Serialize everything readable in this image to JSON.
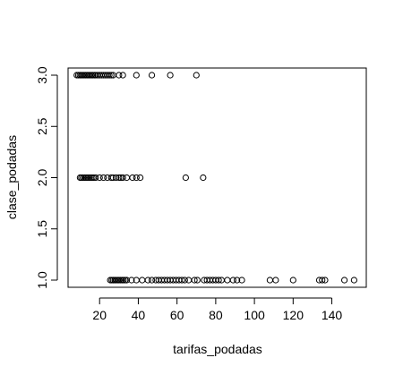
{
  "chart_data": {
    "type": "scatter",
    "xlabel": "tarifas_podadas",
    "ylabel": "clase_podadas",
    "xlim": [
      3.7,
      157.8
    ],
    "ylim": [
      0.93,
      3.07
    ],
    "x_ticks": [
      20,
      40,
      60,
      80,
      100,
      120,
      140
    ],
    "x_tick_labels": [
      "20",
      "40",
      "60",
      "80",
      "100",
      "120",
      "140"
    ],
    "y_ticks": [
      1.0,
      1.5,
      2.0,
      2.5,
      3.0
    ],
    "y_tick_labels": [
      "1.0",
      "1.5",
      "2.0",
      "2.5",
      "3.0"
    ],
    "grid": false,
    "series": [
      {
        "points": [
          [
            8.2,
            3
          ],
          [
            9,
            3
          ],
          [
            9.8,
            3
          ],
          [
            10.5,
            3
          ],
          [
            11.2,
            3
          ],
          [
            12,
            3
          ],
          [
            12.8,
            3
          ],
          [
            13.5,
            3
          ],
          [
            14.3,
            3
          ],
          [
            15,
            3
          ],
          [
            15.8,
            3
          ],
          [
            16.5,
            3
          ],
          [
            17.3,
            3
          ],
          [
            18,
            3
          ],
          [
            19,
            3
          ],
          [
            20,
            3
          ],
          [
            21,
            3
          ],
          [
            22,
            3
          ],
          [
            23,
            3
          ],
          [
            24,
            3
          ],
          [
            25,
            3
          ],
          [
            26,
            3
          ],
          [
            27,
            3
          ],
          [
            30,
            3
          ],
          [
            32,
            3
          ],
          [
            39,
            3
          ],
          [
            47,
            3
          ],
          [
            56.5,
            3
          ],
          [
            70,
            3
          ],
          [
            9.9,
            2
          ],
          [
            10.6,
            2
          ],
          [
            11.4,
            2
          ],
          [
            12.2,
            2
          ],
          [
            13,
            2
          ],
          [
            13.8,
            2
          ],
          [
            14.6,
            2
          ],
          [
            15.4,
            2
          ],
          [
            16.2,
            2
          ],
          [
            17,
            2
          ],
          [
            18,
            2
          ],
          [
            20,
            2
          ],
          [
            22,
            2
          ],
          [
            24,
            2
          ],
          [
            26,
            2
          ],
          [
            27,
            2
          ],
          [
            28.5,
            2
          ],
          [
            30,
            2
          ],
          [
            31,
            2
          ],
          [
            32,
            2
          ],
          [
            34,
            2
          ],
          [
            37,
            2
          ],
          [
            39,
            2
          ],
          [
            41,
            2
          ],
          [
            64.5,
            2
          ],
          [
            73.5,
            2
          ],
          [
            25.5,
            1
          ],
          [
            26.3,
            1
          ],
          [
            27,
            1
          ],
          [
            27.8,
            1
          ],
          [
            28.5,
            1
          ],
          [
            29.3,
            1
          ],
          [
            30,
            1
          ],
          [
            30.8,
            1
          ],
          [
            31.6,
            1
          ],
          [
            32.3,
            1
          ],
          [
            33.2,
            1
          ],
          [
            34,
            1
          ],
          [
            36.5,
            1
          ],
          [
            39,
            1
          ],
          [
            42,
            1
          ],
          [
            45,
            1
          ],
          [
            47,
            1
          ],
          [
            49,
            1
          ],
          [
            50.5,
            1
          ],
          [
            52,
            1
          ],
          [
            53.5,
            1
          ],
          [
            55,
            1
          ],
          [
            56.5,
            1
          ],
          [
            58,
            1
          ],
          [
            59.5,
            1
          ],
          [
            61,
            1
          ],
          [
            62.5,
            1
          ],
          [
            64,
            1
          ],
          [
            66,
            1
          ],
          [
            69,
            1
          ],
          [
            70.5,
            1
          ],
          [
            74,
            1
          ],
          [
            75.5,
            1
          ],
          [
            77,
            1
          ],
          [
            78.5,
            1
          ],
          [
            80,
            1
          ],
          [
            81.5,
            1
          ],
          [
            83,
            1
          ],
          [
            86,
            1
          ],
          [
            89,
            1
          ],
          [
            91,
            1
          ],
          [
            93.5,
            1
          ],
          [
            108,
            1
          ],
          [
            111,
            1
          ],
          [
            120,
            1
          ],
          [
            133.5,
            1
          ],
          [
            135,
            1
          ],
          [
            136.5,
            1
          ],
          [
            146.5,
            1
          ],
          [
            151.5,
            1
          ]
        ]
      }
    ]
  }
}
